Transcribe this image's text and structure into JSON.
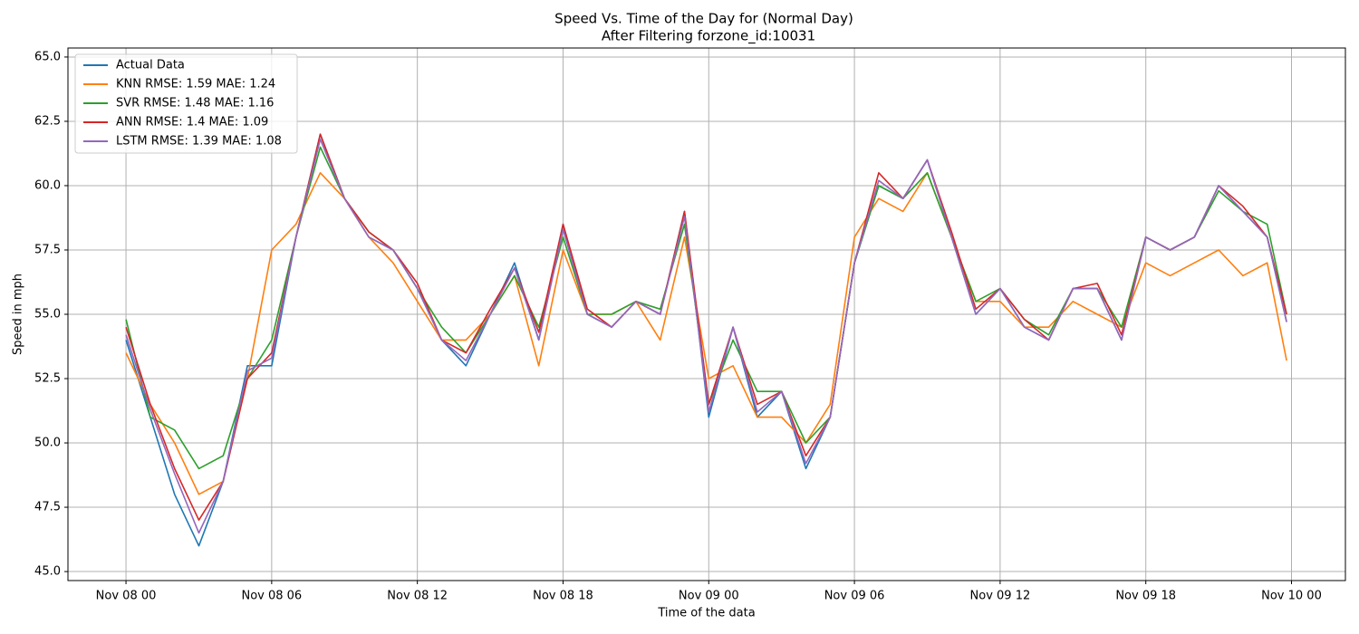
{
  "chart_data": {
    "type": "line",
    "title": "Speed Vs. Time of the Day for (Normal Day)",
    "subtitle": "After Filtering forzone_id:10031",
    "x_label": "Time of the data",
    "y_label": "Speed in mph",
    "x": [
      0,
      1,
      2,
      3,
      4,
      5,
      6,
      7,
      8,
      9,
      10,
      11,
      12,
      13,
      14,
      15,
      16,
      17,
      18,
      19,
      20,
      21,
      22,
      23,
      24,
      25,
      26,
      27,
      28,
      29,
      30,
      31,
      32,
      33,
      34,
      35,
      36,
      37,
      38,
      39,
      40,
      41,
      42,
      43,
      44,
      45,
      46,
      47,
      47.8
    ],
    "series": [
      {
        "name": "Actual Data",
        "color": "#1f77b4",
        "values": [
          54,
          51,
          48,
          46,
          48.5,
          53,
          53,
          58,
          62,
          59.5,
          58,
          57.5,
          56,
          54,
          53,
          55,
          57,
          54,
          58.5,
          55,
          54.5,
          55.5,
          55,
          59,
          51,
          54.5,
          51,
          52,
          49,
          51,
          57,
          60,
          59.5,
          61,
          58,
          55,
          56,
          54.5,
          54,
          56,
          56,
          54,
          58,
          57.5,
          58,
          60,
          59,
          58,
          54.7
        ]
      },
      {
        "name": "KNN RMSE: 1.59 MAE: 1.24",
        "color": "#ff7f0e",
        "values": [
          53.5,
          51.5,
          50,
          48,
          48.5,
          52.5,
          57.5,
          58.5,
          60.5,
          59.5,
          58,
          57,
          55.5,
          54,
          54,
          55,
          56.5,
          53,
          57.5,
          55,
          55,
          55.5,
          54,
          58,
          52.5,
          53,
          51,
          51,
          50,
          51.5,
          58,
          59.5,
          59,
          60.5,
          58,
          55.5,
          55.5,
          54.5,
          54.5,
          55.5,
          55,
          54.5,
          57,
          56.5,
          57,
          57.5,
          56.5,
          57,
          53.2
        ]
      },
      {
        "name": "SVR RMSE: 1.48 MAE: 1.16",
        "color": "#2ca02c",
        "values": [
          54.8,
          51,
          50.5,
          49,
          49.5,
          52.5,
          54,
          58,
          61.5,
          59.5,
          58.2,
          57.5,
          56,
          54.5,
          53.5,
          55,
          56.5,
          54.5,
          58,
          55,
          55,
          55.5,
          55.2,
          58.5,
          51.5,
          54,
          52,
          52,
          50,
          51,
          57,
          60,
          59.5,
          60.5,
          58,
          55.5,
          56,
          54.8,
          54.2,
          56,
          56,
          54.5,
          58,
          57.5,
          58,
          59.8,
          59,
          58.5,
          55
        ]
      },
      {
        "name": "ANN RMSE: 1.4 MAE: 1.09",
        "color": "#d62728",
        "values": [
          54.5,
          51.5,
          49,
          47,
          48.5,
          52.5,
          53.5,
          58,
          62,
          59.5,
          58.2,
          57.5,
          56.2,
          54,
          53.5,
          55.2,
          56.8,
          54.3,
          58.5,
          55.2,
          54.5,
          55.5,
          55,
          59,
          51.5,
          54.5,
          51.5,
          52,
          49.5,
          51,
          57,
          60.5,
          59.5,
          61,
          58.2,
          55.2,
          56,
          54.8,
          54,
          56,
          56.2,
          54.2,
          58,
          57.5,
          58,
          60,
          59.2,
          58,
          55
        ]
      },
      {
        "name": "LSTM RMSE: 1.39 MAE: 1.08",
        "color": "#9467bd",
        "values": [
          54.2,
          51.3,
          48.8,
          46.5,
          48.5,
          52.8,
          53.3,
          58,
          61.8,
          59.5,
          58,
          57.5,
          56,
          54,
          53.2,
          55,
          56.8,
          54,
          58.3,
          55,
          54.5,
          55.5,
          55,
          58.8,
          51.2,
          54.5,
          51.2,
          52,
          49.2,
          51,
          57,
          60.2,
          59.5,
          61,
          58,
          55,
          56,
          54.5,
          54,
          56,
          56,
          54,
          58,
          57.5,
          58,
          60,
          59,
          58,
          54.7
        ]
      }
    ],
    "xlim": [
      -2.39,
      50.22
    ],
    "ylim": [
      44.65,
      65.35
    ],
    "xticks": [
      {
        "value": 0,
        "label": "Nov 08 00"
      },
      {
        "value": 6,
        "label": "Nov 08 06"
      },
      {
        "value": 12,
        "label": "Nov 08 12"
      },
      {
        "value": 18,
        "label": "Nov 08 18"
      },
      {
        "value": 24,
        "label": "Nov 09 00"
      },
      {
        "value": 30,
        "label": "Nov 09 06"
      },
      {
        "value": 36,
        "label": "Nov 09 12"
      },
      {
        "value": 42,
        "label": "Nov 09 18"
      },
      {
        "value": 48,
        "label": "Nov 10 00"
      }
    ],
    "yticks": [
      {
        "value": 45,
        "label": "45.0"
      },
      47.5,
      {
        "value": 50,
        "label": "50.0"
      },
      52.5,
      {
        "value": 55,
        "label": "55.0"
      },
      57.5,
      {
        "value": 60,
        "label": "60.0"
      },
      62.5,
      {
        "value": 65,
        "label": "65.0"
      }
    ],
    "grid": true,
    "legend": "upper-left"
  }
}
